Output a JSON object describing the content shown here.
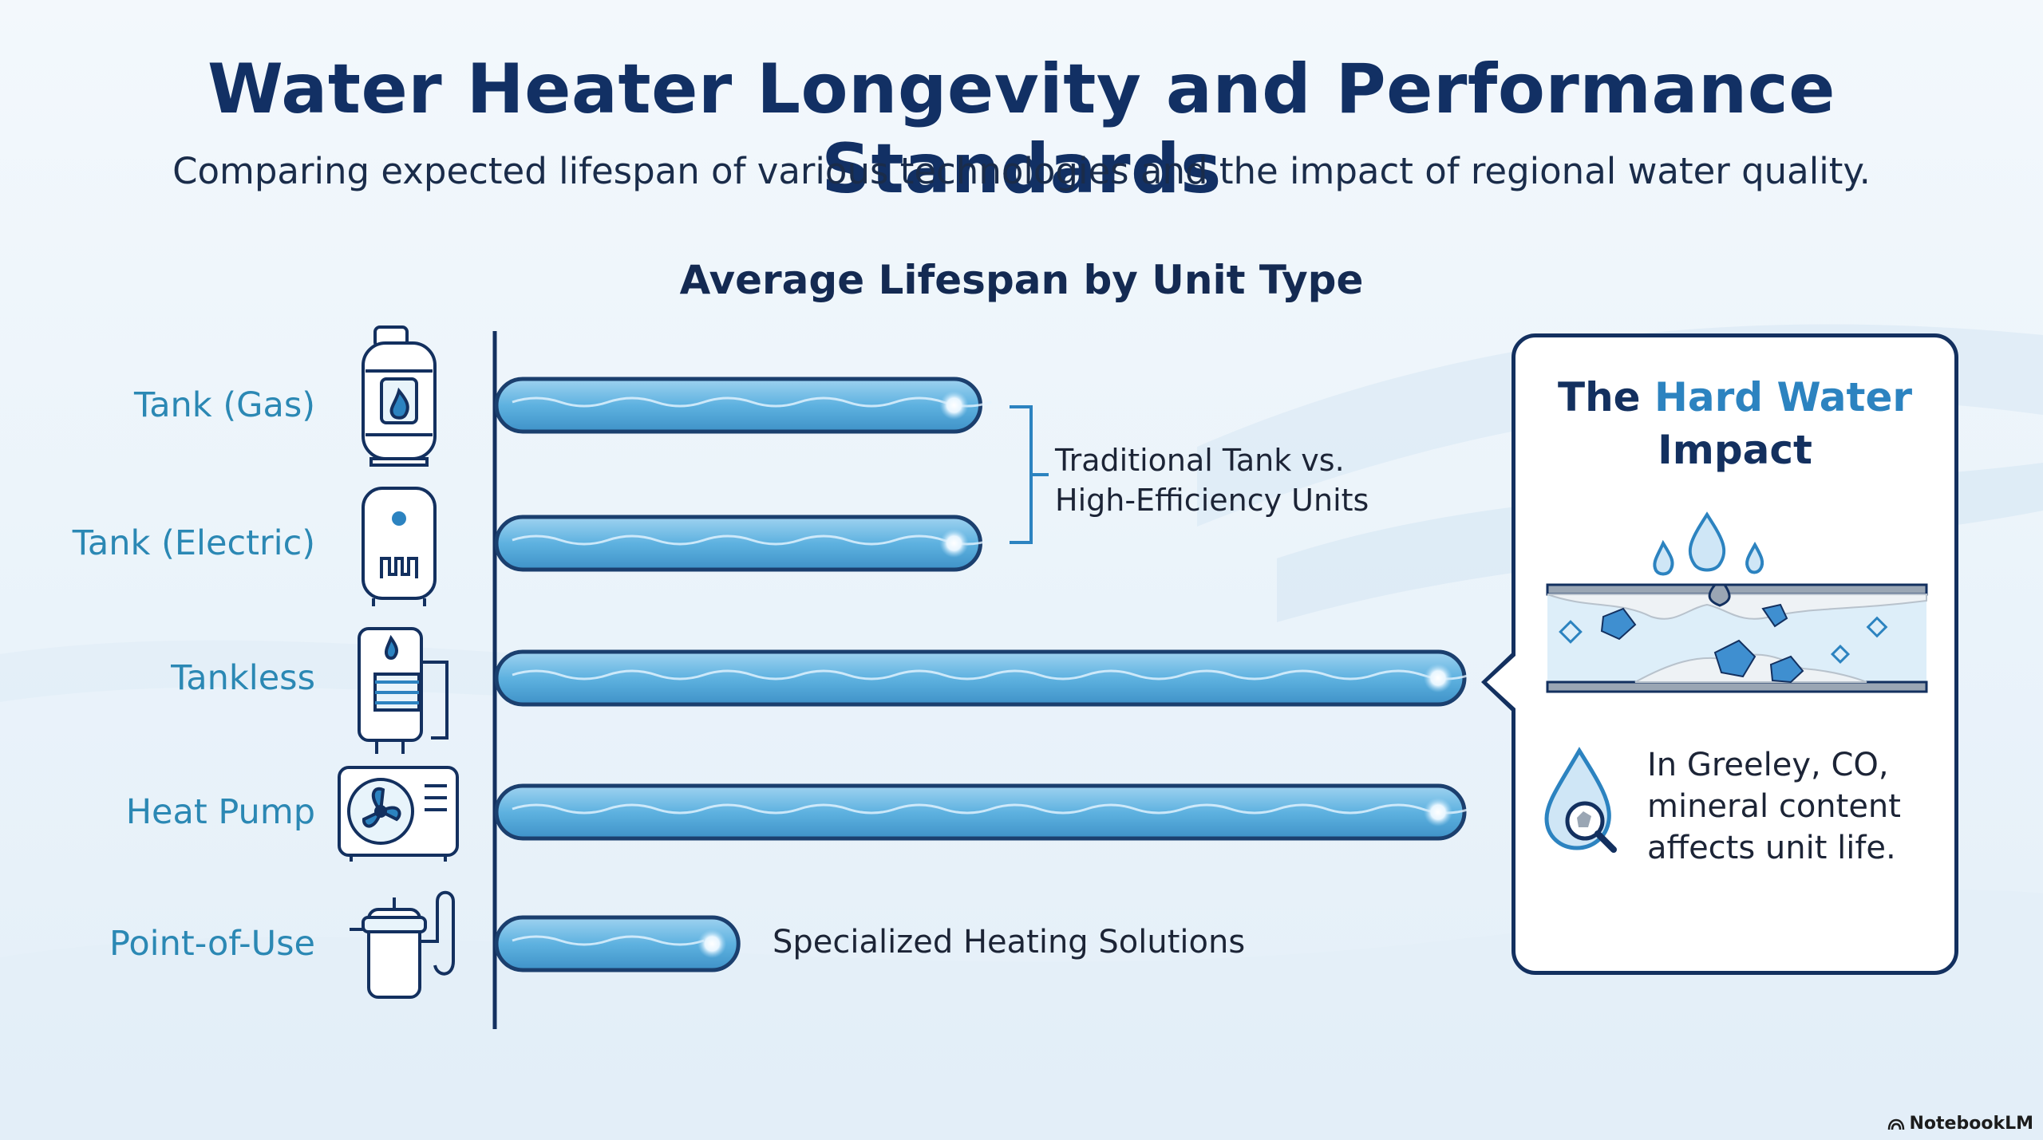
{
  "header": {
    "title": "Water Heater Longevity and Performance Standards",
    "subtitle": "Comparing expected lifespan of various technologies and the impact of regional water quality."
  },
  "chart_data": {
    "type": "bar",
    "orientation": "horizontal",
    "title": "Average Lifespan by Unit Type",
    "categories": [
      "Tank (Gas)",
      "Tank (Electric)",
      "Tankless",
      "Heat Pump",
      "Point-of-Use"
    ],
    "values": [
      10,
      10,
      20,
      20,
      5
    ],
    "value_unit": "relative",
    "icons": [
      "gas-tank-icon",
      "electric-tank-icon",
      "tankless-heater-icon",
      "heat-pump-icon",
      "point-of-use-heater-icon"
    ],
    "annotations": {
      "group_bracket": "Traditional Tank vs.\nHigh-Efficiency Units",
      "point_of_use": "Specialized Heating Solutions"
    },
    "grid": false,
    "colors": {
      "bar_fill": "#5eb2e0",
      "bar_outline": "#1b3f6e",
      "label": "#2b88b4"
    }
  },
  "callout": {
    "title_prefix": "The ",
    "title_accent": "Hard Water",
    "title_suffix": "Impact",
    "text": "In Greeley, CO, mineral content affects unit life.",
    "icons": [
      "pipe-scale-icon",
      "water-drop-magnifier-icon"
    ]
  },
  "branding": {
    "name": "NotebookLM"
  }
}
